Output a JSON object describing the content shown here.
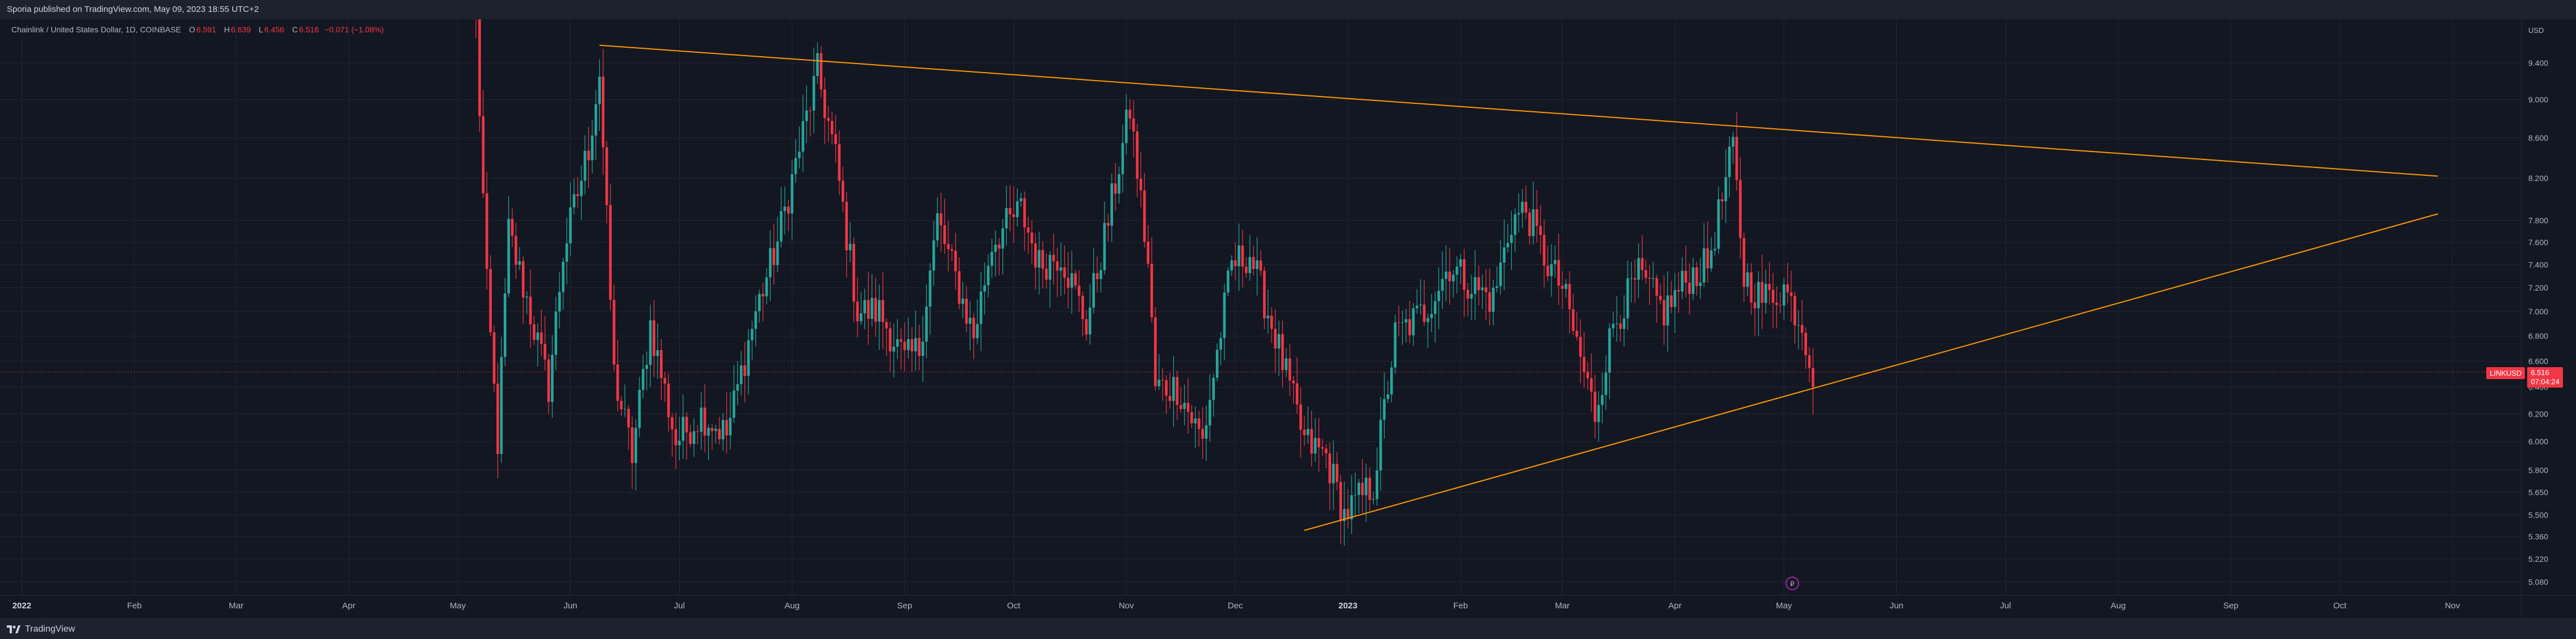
{
  "header": {
    "published": "Sporia published on TradingView.com, May 09, 2023 18:55 UTC+2"
  },
  "legend": {
    "title": "Chainlink / United States Dollar, 1D, COINBASE",
    "o_label": "O",
    "o_value": "6.591",
    "h_label": "H",
    "h_value": "6.639",
    "l_label": "L",
    "l_value": "6.456",
    "c_label": "C",
    "c_value": "6.516",
    "change": "−0.071 (−1.08%)"
  },
  "axis": {
    "currency": "USD"
  },
  "price_tag": {
    "symbol": "LINKUSD",
    "price": "6.516",
    "countdown": "07:04:24"
  },
  "footer": {
    "brand": "TradingView"
  },
  "colors": {
    "up": "#26a69a",
    "down": "#f23645",
    "trendline": "#ff9800",
    "background": "#131722",
    "grid": "#232632"
  },
  "chart_data": {
    "type": "candlestick",
    "symbol": "LINKUSD",
    "exchange": "COINBASE",
    "interval": "1D",
    "y_scale": "log",
    "y_ticks": [
      5.08,
      5.22,
      5.36,
      5.5,
      5.65,
      5.8,
      6.0,
      6.2,
      6.4,
      6.6,
      6.8,
      7.0,
      7.2,
      7.4,
      7.6,
      7.8,
      8.2,
      8.6,
      9.0,
      9.4
    ],
    "y_tick_labels": [
      "5.080",
      "5.220",
      "5.360",
      "5.500",
      "5.650",
      "5.800",
      "6.000",
      "6.200",
      "6.400",
      "6.600",
      "6.800",
      "7.000",
      "7.200",
      "7.400",
      "7.600",
      "7.800",
      "8.200",
      "8.600",
      "9.000",
      "9.400"
    ],
    "ylim": [
      5.0,
      9.9
    ],
    "x_ticks": [
      {
        "label": "2022",
        "date": "2022-01-01",
        "year": true
      },
      {
        "label": "Feb",
        "date": "2022-02-01"
      },
      {
        "label": "Mar",
        "date": "2022-03-01"
      },
      {
        "label": "Apr",
        "date": "2022-04-01"
      },
      {
        "label": "May",
        "date": "2022-05-01"
      },
      {
        "label": "Jun",
        "date": "2022-06-01"
      },
      {
        "label": "Jul",
        "date": "2022-07-01"
      },
      {
        "label": "Aug",
        "date": "2022-08-01"
      },
      {
        "label": "Sep",
        "date": "2022-09-01"
      },
      {
        "label": "Oct",
        "date": "2022-10-01"
      },
      {
        "label": "Nov",
        "date": "2022-11-01"
      },
      {
        "label": "Dec",
        "date": "2022-12-01"
      },
      {
        "label": "2023",
        "date": "2023-01-01",
        "year": true
      },
      {
        "label": "Feb",
        "date": "2023-02-01"
      },
      {
        "label": "Mar",
        "date": "2023-03-01"
      },
      {
        "label": "Apr",
        "date": "2023-04-01"
      },
      {
        "label": "May",
        "date": "2023-05-01"
      },
      {
        "label": "Jun",
        "date": "2023-06-01"
      },
      {
        "label": "Jul",
        "date": "2023-07-01"
      },
      {
        "label": "Aug",
        "date": "2023-08-01"
      },
      {
        "label": "Sep",
        "date": "2023-09-01"
      },
      {
        "label": "Oct",
        "date": "2023-10-01"
      },
      {
        "label": "Nov",
        "date": "2023-11-01"
      }
    ],
    "xlim": [
      "2021-12-26",
      "2023-11-20"
    ],
    "candles_date_range": [
      "2022-05-06",
      "2023-05-09"
    ],
    "path_keypoints": [
      [
        "2022-05-06",
        9.9
      ],
      [
        "2022-05-09",
        7.2
      ],
      [
        "2022-05-12",
        6.0
      ],
      [
        "2022-05-15",
        7.7
      ],
      [
        "2022-05-20",
        7.1
      ],
      [
        "2022-05-26",
        6.4
      ],
      [
        "2022-05-30",
        7.5
      ],
      [
        "2022-06-06",
        8.5
      ],
      [
        "2022-06-09",
        9.3
      ],
      [
        "2022-06-13",
        6.5
      ],
      [
        "2022-06-18",
        5.9
      ],
      [
        "2022-06-23",
        6.9
      ],
      [
        "2022-06-30",
        6.0
      ],
      [
        "2022-07-07",
        6.2
      ],
      [
        "2022-07-14",
        6.05
      ],
      [
        "2022-07-22",
        7.0
      ],
      [
        "2022-07-28",
        7.6
      ],
      [
        "2022-08-03",
        8.5
      ],
      [
        "2022-08-08",
        9.3
      ],
      [
        "2022-08-13",
        8.4
      ],
      [
        "2022-08-19",
        7.0
      ],
      [
        "2022-08-25",
        7.0
      ],
      [
        "2022-09-01",
        6.6
      ],
      [
        "2022-09-05",
        6.7
      ],
      [
        "2022-09-10",
        7.8
      ],
      [
        "2022-09-20",
        6.8
      ],
      [
        "2022-09-25",
        7.6
      ],
      [
        "2022-10-03",
        7.9
      ],
      [
        "2022-10-08",
        7.4
      ],
      [
        "2022-10-14",
        7.5
      ],
      [
        "2022-10-21",
        6.9
      ],
      [
        "2022-10-27",
        7.8
      ],
      [
        "2022-11-02",
        8.9
      ],
      [
        "2022-11-07",
        7.4
      ],
      [
        "2022-11-09",
        6.4
      ],
      [
        "2022-11-15",
        6.4
      ],
      [
        "2022-11-22",
        6.0
      ],
      [
        "2022-11-30",
        7.4
      ],
      [
        "2022-12-05",
        7.5
      ],
      [
        "2022-12-12",
        6.8
      ],
      [
        "2022-12-20",
        6.0
      ],
      [
        "2022-12-26",
        5.9
      ],
      [
        "2022-12-31",
        5.5
      ],
      [
        "2023-01-08",
        5.7
      ],
      [
        "2023-01-14",
        6.8
      ],
      [
        "2023-01-22",
        7.0
      ],
      [
        "2023-01-29",
        7.4
      ],
      [
        "2023-02-05",
        7.2
      ],
      [
        "2023-02-10",
        7.1
      ],
      [
        "2023-02-15",
        7.8
      ],
      [
        "2023-02-19",
        7.9
      ],
      [
        "2023-02-25",
        7.4
      ],
      [
        "2023-03-01",
        7.2
      ],
      [
        "2023-03-10",
        6.2
      ],
      [
        "2023-03-15",
        6.9
      ],
      [
        "2023-03-22",
        7.3
      ],
      [
        "2023-03-29",
        7.0
      ],
      [
        "2023-04-05",
        7.3
      ],
      [
        "2023-04-10",
        7.4
      ],
      [
        "2023-04-14",
        8.0
      ],
      [
        "2023-04-17",
        8.5
      ],
      [
        "2023-04-20",
        7.3
      ],
      [
        "2023-04-25",
        7.1
      ],
      [
        "2023-05-01",
        7.2
      ],
      [
        "2023-05-06",
        6.9
      ],
      [
        "2023-05-09",
        6.516
      ]
    ],
    "trendlines": [
      {
        "name": "upper",
        "from": [
          "2022-06-09",
          9.6
        ],
        "to": [
          "2023-10-28",
          8.22
        ]
      },
      {
        "name": "lower",
        "from": [
          "2022-12-20",
          5.4
        ],
        "to": [
          "2023-10-28",
          7.86
        ]
      }
    ],
    "last_price": 6.516
  }
}
